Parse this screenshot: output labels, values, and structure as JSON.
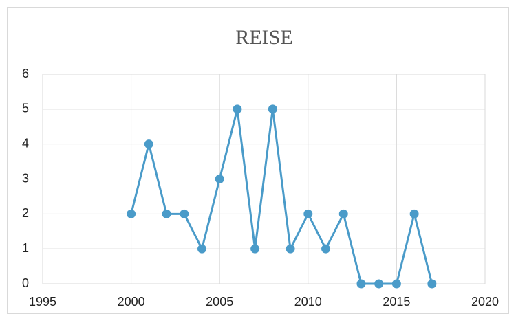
{
  "chart_data": {
    "type": "line",
    "title": "REISE",
    "x": [
      2000,
      2001,
      2002,
      2003,
      2004,
      2005,
      2006,
      2007,
      2008,
      2009,
      2010,
      2011,
      2012,
      2013,
      2014,
      2015,
      2016,
      2017
    ],
    "values": [
      2,
      4,
      2,
      2,
      1,
      3,
      5,
      1,
      5,
      1,
      2,
      1,
      2,
      0,
      0,
      0,
      2,
      0
    ],
    "color": "#4a9bc9",
    "xlim": [
      1995,
      2020
    ],
    "xticks": [
      1995,
      2000,
      2005,
      2010,
      2015,
      2020
    ],
    "ylim": [
      0,
      6
    ],
    "yticks": [
      0,
      1,
      2,
      3,
      4,
      5,
      6
    ],
    "grid": true
  }
}
